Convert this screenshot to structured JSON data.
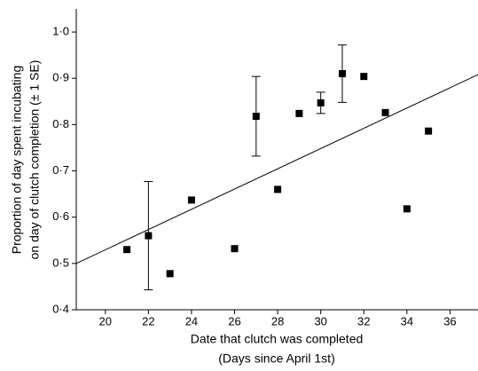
{
  "chart_data": {
    "type": "scatter",
    "xlabel": [
      "Date that clutch was completed",
      "(Days since April 1st)"
    ],
    "ylabel": [
      "Proportion of day spent incubating",
      "on day of clutch completion (± 1 SE)"
    ],
    "x": [
      21,
      22,
      23,
      24,
      26,
      27,
      28,
      29,
      30,
      31,
      32,
      33,
      34,
      35
    ],
    "values": [
      0.53,
      0.56,
      0.478,
      0.637,
      0.532,
      0.818,
      0.66,
      0.824,
      0.847,
      0.91,
      0.904,
      0.826,
      0.618,
      0.786
    ],
    "errors": [
      null,
      0.117,
      null,
      null,
      null,
      0.086,
      null,
      null,
      0.023,
      0.062,
      null,
      null,
      null,
      null
    ],
    "color": "#000000",
    "fit_line": {
      "x": [
        18.65,
        37.3
      ],
      "y": [
        0.5,
        0.908
      ]
    },
    "xlim": [
      18.65,
      37.3
    ],
    "xticks": [
      20,
      22,
      24,
      26,
      28,
      30,
      32,
      34,
      36
    ],
    "ylim": [
      0.4,
      1.05
    ],
    "yticks": [
      {
        "value": 0.4,
        "label": "0·4"
      },
      {
        "value": 0.5,
        "label": "0·5"
      },
      {
        "value": 0.6,
        "label": "0·6"
      },
      {
        "value": 0.7,
        "label": "0·7"
      },
      {
        "value": 0.8,
        "label": "0·8"
      },
      {
        "value": 0.9,
        "label": "0·9"
      },
      {
        "value": 1.0,
        "label": "1·0"
      }
    ]
  }
}
